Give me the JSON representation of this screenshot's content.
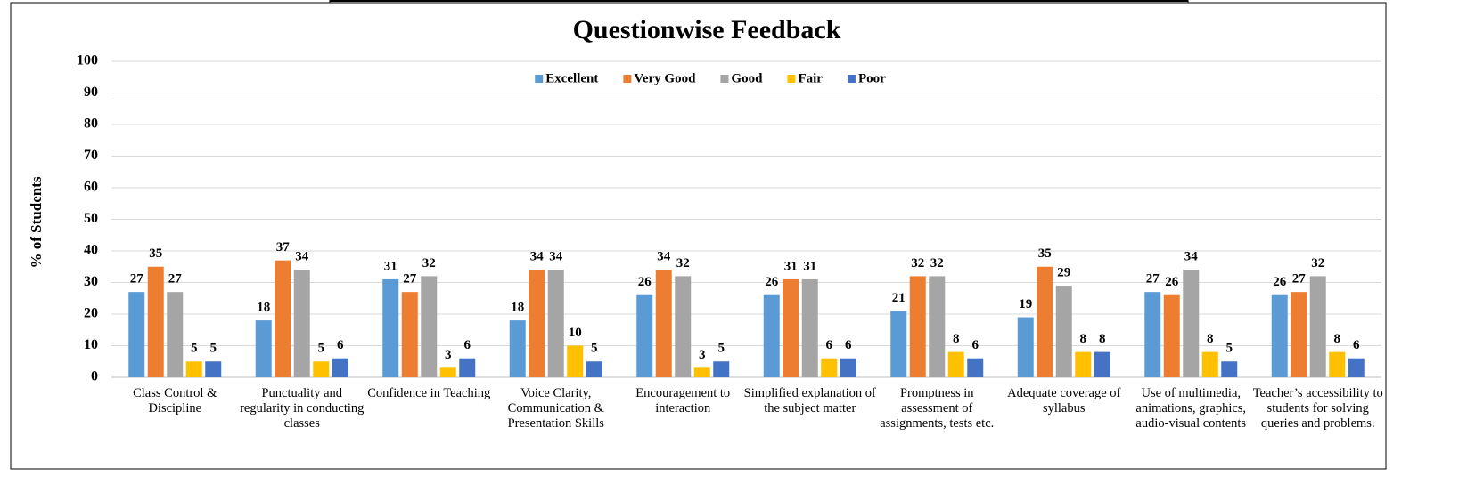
{
  "chart_data": {
    "type": "bar",
    "title": "Questionwise Feedback",
    "ylabel": "% of Students",
    "categories": [
      "Class Control & Discipline",
      "Punctuality and regularity in conducting classes",
      "Confidence in Teaching",
      "Voice Clarity, Communication & Presentation Skills",
      "Encouragement to interaction",
      "Simplified explanation of the subject matter",
      "Promptness in assessment of assignments, tests etc.",
      "Adequate coverage of syllabus",
      "Use of multimedia, animations, graphics, audio-visual contents",
      "Teacher’s accessibility to students for solving queries and problems."
    ],
    "series": [
      {
        "name": "Excellent",
        "color": "#5b9bd5",
        "values": [
          27,
          18,
          31,
          18,
          26,
          26,
          21,
          19,
          27,
          26
        ]
      },
      {
        "name": "Very Good",
        "color": "#ed7d31",
        "values": [
          35,
          37,
          27,
          34,
          34,
          31,
          32,
          35,
          26,
          27
        ]
      },
      {
        "name": "Good",
        "color": "#a5a5a5",
        "values": [
          27,
          34,
          32,
          34,
          32,
          31,
          32,
          29,
          34,
          32
        ]
      },
      {
        "name": "Fair",
        "color": "#ffc000",
        "values": [
          5,
          5,
          3,
          10,
          3,
          6,
          8,
          8,
          8,
          8
        ]
      },
      {
        "name": "Poor",
        "color": "#4472c4",
        "values": [
          5,
          6,
          6,
          5,
          5,
          6,
          6,
          8,
          5,
          6
        ]
      }
    ],
    "ylim": [
      0,
      100
    ],
    "yticks": [
      0,
      10,
      20,
      30,
      40,
      50,
      60,
      70,
      80,
      90,
      100
    ],
    "grid": true,
    "legend": "top"
  }
}
